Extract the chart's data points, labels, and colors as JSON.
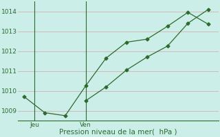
{
  "line1_x": [
    0,
    1,
    2,
    3,
    4,
    5,
    6,
    7,
    8,
    9
  ],
  "line1_y": [
    1009.7,
    1008.9,
    1008.75,
    1010.25,
    1011.65,
    1012.45,
    1012.6,
    1013.25,
    1013.95,
    1013.35
  ],
  "line2_x": [
    3,
    4,
    5,
    6,
    7,
    8,
    9
  ],
  "line2_y": [
    1009.5,
    1010.2,
    1011.05,
    1011.7,
    1012.25,
    1013.4,
    1014.1
  ],
  "ylim": [
    1008.5,
    1014.5
  ],
  "xlim": [
    -0.3,
    9.5
  ],
  "yticks": [
    1009,
    1010,
    1011,
    1012,
    1013,
    1014
  ],
  "vline_jeu": 0.5,
  "vline_ven": 3.0,
  "jeu_x": 0.5,
  "ven_x": 3.0,
  "line_color": "#2d6a2d",
  "bg_color": "#cceee8",
  "grid_color": "#d4b0b0",
  "xlabel": "Pression niveau de la mer(  hPa )"
}
